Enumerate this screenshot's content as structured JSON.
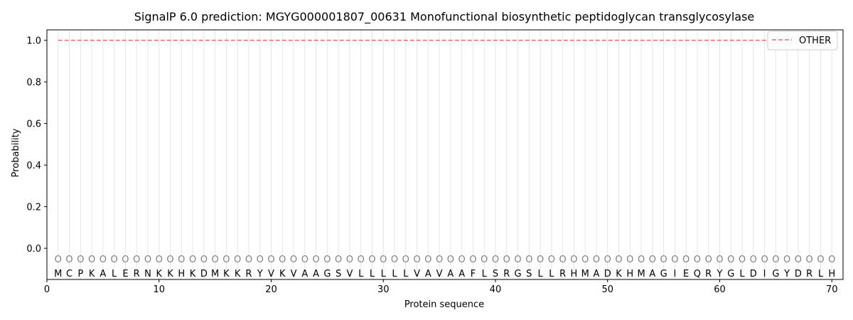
{
  "chart_data": {
    "type": "line",
    "title": "SignalP 6.0 prediction: MGYG000001807_00631 Monofunctional biosynthetic peptidoglycan transglycosylase",
    "xlabel": "Protein sequence",
    "ylabel": "Probability",
    "xlim": [
      0,
      71
    ],
    "ylim": [
      -0.15,
      1.05
    ],
    "xticks": [
      0,
      10,
      20,
      30,
      40,
      50,
      60,
      70
    ],
    "yticks": [
      0.0,
      0.2,
      0.4,
      0.6,
      0.8,
      1.0
    ],
    "ytick_labels": [
      "0.0",
      "0.2",
      "0.4",
      "0.6",
      "0.8",
      "1.0"
    ],
    "sequence": [
      "M",
      "C",
      "P",
      "K",
      "A",
      "L",
      "E",
      "R",
      "N",
      "K",
      "K",
      "H",
      "K",
      "D",
      "M",
      "K",
      "K",
      "R",
      "Y",
      "V",
      "K",
      "V",
      "A",
      "A",
      "G",
      "S",
      "V",
      "L",
      "L",
      "L",
      "L",
      "L",
      "V",
      "A",
      "V",
      "A",
      "A",
      "F",
      "L",
      "S",
      "R",
      "G",
      "S",
      "L",
      "L",
      "R",
      "H",
      "M",
      "A",
      "D",
      "K",
      "H",
      "M",
      "A",
      "G",
      "I",
      "E",
      "Q",
      "R",
      "Y",
      "G",
      "L",
      "D",
      "I",
      "G",
      "Y",
      "D",
      "R",
      "L",
      "H"
    ],
    "per_residue_label": "O",
    "series": [
      {
        "name": "OTHER",
        "color": "#e8696b",
        "style": "dashed",
        "x_start": 1,
        "x_end": 70,
        "values_constant": 1.0
      }
    ],
    "legend_position": "top-right",
    "grid": false
  }
}
